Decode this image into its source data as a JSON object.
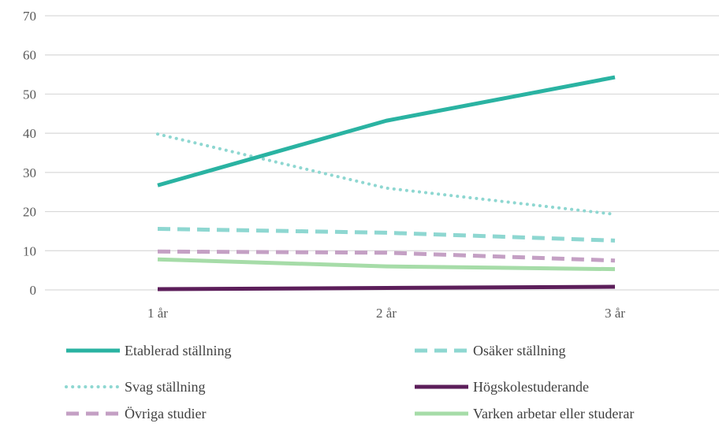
{
  "chart_data": {
    "type": "line",
    "title": "",
    "xlabel": "",
    "ylabel": "",
    "categories": [
      "1 år",
      "2 år",
      "3 år"
    ],
    "ylim": [
      0,
      70
    ],
    "yticks": [
      "0",
      "10",
      "20",
      "30",
      "40",
      "50",
      "60",
      "70"
    ],
    "grid": true,
    "legend_position": "bottom",
    "series": [
      {
        "name": "Etablerad ställning",
        "values": [
          26.7,
          43.2,
          54.3
        ],
        "color": "#2AB3A2",
        "style": "solid",
        "width": 5
      },
      {
        "name": "Osäker ställning",
        "values": [
          15.6,
          14.6,
          12.6
        ],
        "color": "#8ED7D1",
        "style": "dashed",
        "width": 5
      },
      {
        "name": "Svag ställning",
        "values": [
          39.8,
          26.0,
          19.3
        ],
        "color": "#8ED7D1",
        "style": "dotted",
        "width": 4
      },
      {
        "name": "Högskolestuderande",
        "values": [
          0.2,
          0.5,
          0.8
        ],
        "color": "#5C1E5A",
        "style": "solid",
        "width": 5
      },
      {
        "name": "Övriga studier",
        "values": [
          9.8,
          9.5,
          7.5
        ],
        "color": "#C4A0C4",
        "style": "dashed",
        "width": 5
      },
      {
        "name": "Varken arbetar eller studerar",
        "values": [
          7.8,
          6.0,
          5.3
        ],
        "color": "#A6DCA8",
        "style": "solid",
        "width": 5
      }
    ]
  }
}
